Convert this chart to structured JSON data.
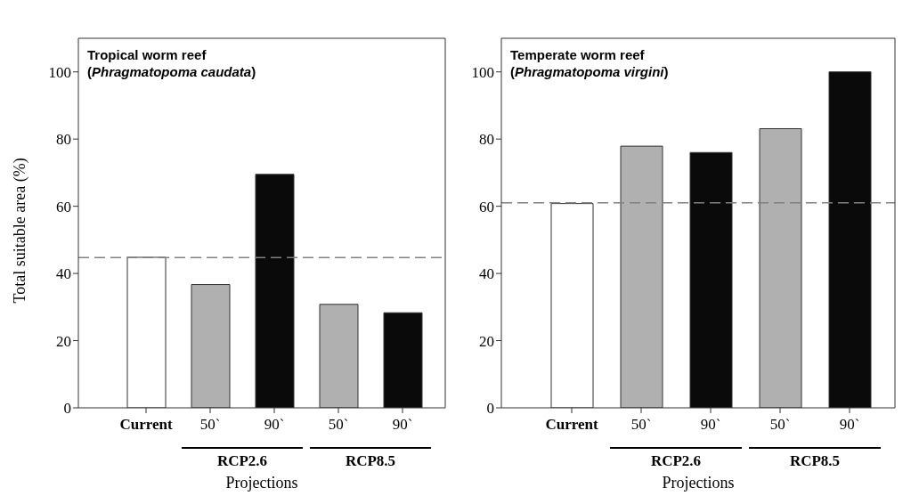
{
  "chart_data": [
    {
      "type": "bar",
      "title": "Tropical worm reef\n(Phragmatopoma caudata)",
      "xlabel": "Projections",
      "ylabel": "Total suitable area (%)",
      "categories": [
        "Current",
        "50`",
        "90`",
        "50`",
        "90`"
      ],
      "values": [
        44.8,
        36.7,
        69.5,
        30.8,
        28.3
      ],
      "colors": [
        "#ffffff",
        "#b0b0b0",
        "#0a0a0a",
        "#b0b0b0",
        "#0a0a0a"
      ],
      "ylim": [
        0,
        110
      ],
      "yticks": [
        0,
        20,
        40,
        60,
        80,
        100
      ],
      "ref_lines": [
        {
          "axis": "y",
          "value": 44.7,
          "line_style": "dashed",
          "color": "#808080"
        }
      ],
      "annotations": [
        "RCP2.6",
        "RCP8.5"
      ]
    },
    {
      "type": "bar",
      "title": "Temperate worm reef\n(Phragmatopoma virgini)",
      "xlabel": "Projections",
      "categories": [
        "Current",
        "50`",
        "90`",
        "50`",
        "90`"
      ],
      "values": [
        60.8,
        77.9,
        76.0,
        83.1,
        100
      ],
      "colors": [
        "#ffffff",
        "#b0b0b0",
        "#0a0a0a",
        "#b0b0b0",
        "#0a0a0a"
      ],
      "ylim": [
        0,
        110
      ],
      "yticks": [
        0,
        20,
        40,
        60,
        80,
        100
      ],
      "ref_lines": [
        {
          "axis": "y",
          "value": 61.0,
          "line_style": "dashed",
          "color": "#808080"
        }
      ],
      "annotations": [
        "RCP2.6",
        "RCP8.5"
      ]
    }
  ]
}
